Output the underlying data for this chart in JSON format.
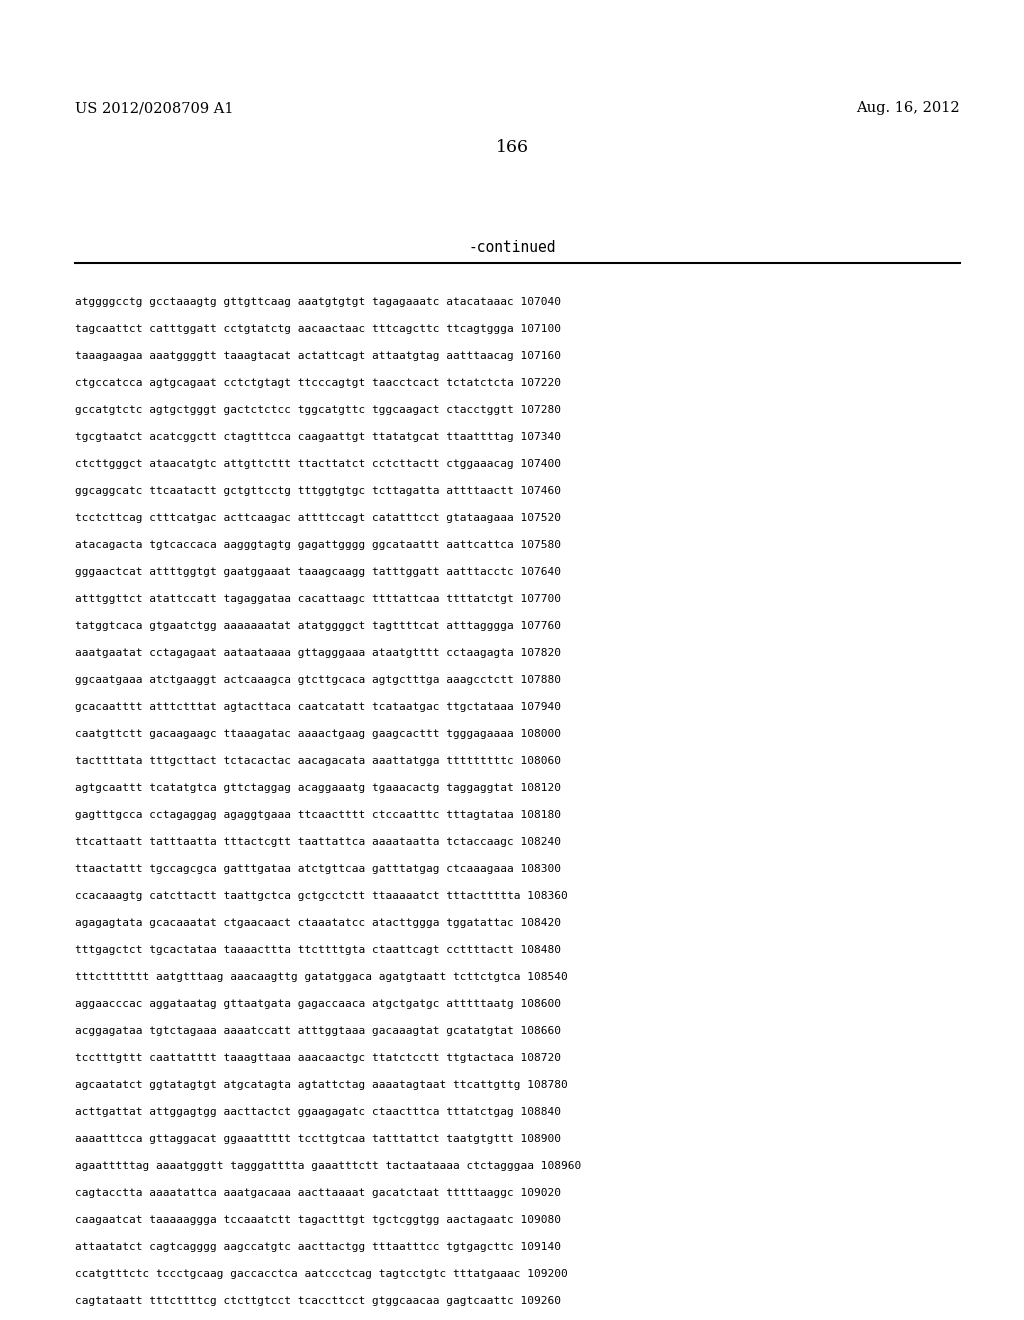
{
  "header_left": "US 2012/0208709 A1",
  "header_right": "Aug. 16, 2012",
  "page_number": "166",
  "continued_label": "-continued",
  "background_color": "#ffffff",
  "text_color": "#000000",
  "font_size_header": 10.5,
  "font_size_page": 12.5,
  "font_size_continued": 10.5,
  "font_size_sequence": 8.0,
  "lines": [
    "atggggcctg gcctaaagtg gttgttcaag aaatgtgtgt tagagaaatc atacataaac 107040",
    "tagcaattct catttggatt cctgtatctg aacaactaac tttcagcttc ttcagtggga 107100",
    "taaagaagaa aaatggggtt taaagtacat actattcagt attaatgtag aatttaacag 107160",
    "ctgccatcca agtgcagaat cctctgtagt ttcccagtgt taacctcact tctatctcta 107220",
    "gccatgtctc agtgctgggt gactctctcc tggcatgttc tggcaagact ctacctggtt 107280",
    "tgcgtaatct acatcggctt ctagtttcca caagaattgt ttatatgcat ttaattttag 107340",
    "ctcttgggct ataacatgtc attgttcttt ttacttatct cctcttactt ctggaaacag 107400",
    "ggcaggcatc ttcaatactt gctgttcctg tttggtgtgc tcttagatta attttaactt 107460",
    "tcctcttcag ctttcatgac acttcaagac attttccagt catatttcct gtataagaaa 107520",
    "atacagacta tgtcaccaca aagggtagtg gagattgggg ggcataattt aattcattca 107580",
    "gggaactcat attttggtgt gaatggaaat taaagcaagg tatttggatt aatttacctc 107640",
    "atttggttct atattccatt tagaggataa cacattaagc ttttattcaa ttttatctgt 107700",
    "tatggtcaca gtgaatctgg aaaaaaatat atatggggct tagttttcat atttagggga 107760",
    "aaatgaatat cctagagaat aataataaaa gttagggaaa ataatgtttt cctaagagta 107820",
    "ggcaatgaaa atctgaaggt actcaaagca gtcttgcaca agtgctttga aaagcctctt 107880",
    "gcacaatttt atttctttat agtacttaca caatcatatt tcataatgac ttgctataaa 107940",
    "caatgttctt gacaagaagc ttaaagatac aaaactgaag gaagcacttt tgggagaaaa 108000",
    "tacttttata tttgcttact tctacactac aacagacata aaattatgga tttttttttc 108060",
    "agtgcaattt tcatatgtca gttctaggag acaggaaatg tgaaacactg taggaggtat 108120",
    "gagtttgcca cctagaggag agaggtgaaa ttcaactttt ctccaatttc tttagtataa 108180",
    "ttcattaatt tatttaatta tttactcgtt taattattca aaaataatta tctaccaagc 108240",
    "ttaactattt tgccagcgca gatttgataa atctgttcaa gatttatgag ctcaaagaaa 108300",
    "ccacaaagtg catcttactt taattgctca gctgcctctt ttaaaaatct tttacttttta 108360",
    "agagagtata gcacaaatat ctgaacaact ctaaatatcc atacttggga tggatattac 108420",
    "tttgagctct tgcactataa taaaacttta ttcttttgta ctaattcagt ccttttactt 108480",
    "tttcttttttt aatgtttaag aaacaagttg gatatggaca agatgtaatt tcttctgtca 108540",
    "aggaacccac aggataatag gttaatgata gagaccaaca atgctgatgc atttttaatg 108600",
    "acggagataa tgtctagaaa aaaatccatt atttggtaaa gacaaagtat gcatatgtat 108660",
    "tcctttgttt caattatttt taaagttaaa aaacaactgc ttatctcctt ttgtactaca 108720",
    "agcaatatct ggtatagtgt atgcatagta agtattctag aaaatagtaat ttcattgttg 108780",
    "acttgattat attggagtgg aacttactct ggaagagatc ctaactttca tttatctgag 108840",
    "aaaatttcca gttaggacat ggaaattttt tccttgtcaa tatttattct taatgtgttt 108900",
    "agaatttttag aaaatgggtt tagggatttta gaaatttctt tactaataaaa ctctagggaa 108960",
    "cagtacctta aaaatattca aaatgacaaa aacttaaaat gacatctaat tttttaaggc 109020",
    "caagaatcat taaaaaggga tccaaatctt tagactttgt tgctcggtgg aactagaatc 109080",
    "attaatatct cagtcagggg aagccatgtc aacttactgg tttaatttcc tgtgagcttc 109140",
    "ccatgtttctc tccctgcaag gaccacctca aatccctcag tagtcctgtc tttatgaaac 109200",
    "cagtataatt tttcttttcg ctcttgtcct tcaccttcct gtggcaacaa gagtcaattc 109260"
  ]
}
